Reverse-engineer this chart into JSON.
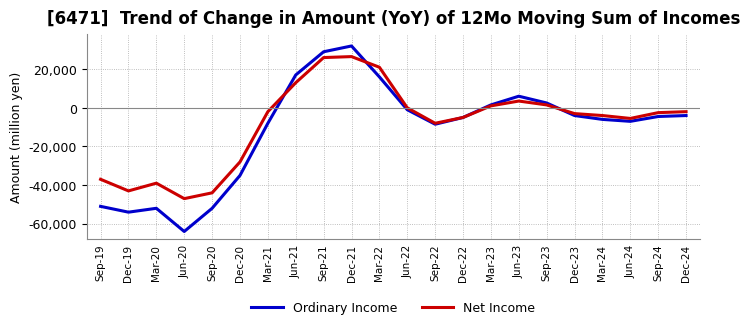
{
  "title": "[6471]  Trend of Change in Amount (YoY) of 12Mo Moving Sum of Incomes",
  "ylabel": "Amount (million yen)",
  "ylim": [
    -68000,
    38000
  ],
  "yticks": [
    -60000,
    -40000,
    -20000,
    0,
    20000
  ],
  "x_labels": [
    "Sep-19",
    "Dec-19",
    "Mar-20",
    "Jun-20",
    "Sep-20",
    "Dec-20",
    "Mar-21",
    "Jun-21",
    "Sep-21",
    "Dec-21",
    "Mar-22",
    "Jun-22",
    "Sep-22",
    "Dec-22",
    "Mar-23",
    "Jun-23",
    "Sep-23",
    "Dec-23",
    "Mar-24",
    "Jun-24",
    "Sep-24",
    "Dec-24"
  ],
  "ordinary_income": [
    -51000,
    -54000,
    -52000,
    -64000,
    -52000,
    -35000,
    -8000,
    17000,
    29000,
    32000,
    16000,
    -1000,
    -8500,
    -5000,
    1500,
    6000,
    2500,
    -4000,
    -6000,
    -7000,
    -4500,
    -4000
  ],
  "net_income": [
    -37000,
    -43000,
    -39000,
    -47000,
    -44000,
    -28000,
    -2000,
    13000,
    26000,
    26500,
    21000,
    0,
    -8000,
    -5000,
    1000,
    3500,
    1500,
    -3000,
    -4000,
    -5500,
    -2500,
    -2000
  ],
  "ordinary_color": "#0000CC",
  "net_color": "#CC0000",
  "grid_color": "#AAAAAA",
  "background_color": "#FFFFFF",
  "title_fontsize": 12,
  "legend_labels": [
    "Ordinary Income",
    "Net Income"
  ],
  "zero_line_color": "#888888"
}
